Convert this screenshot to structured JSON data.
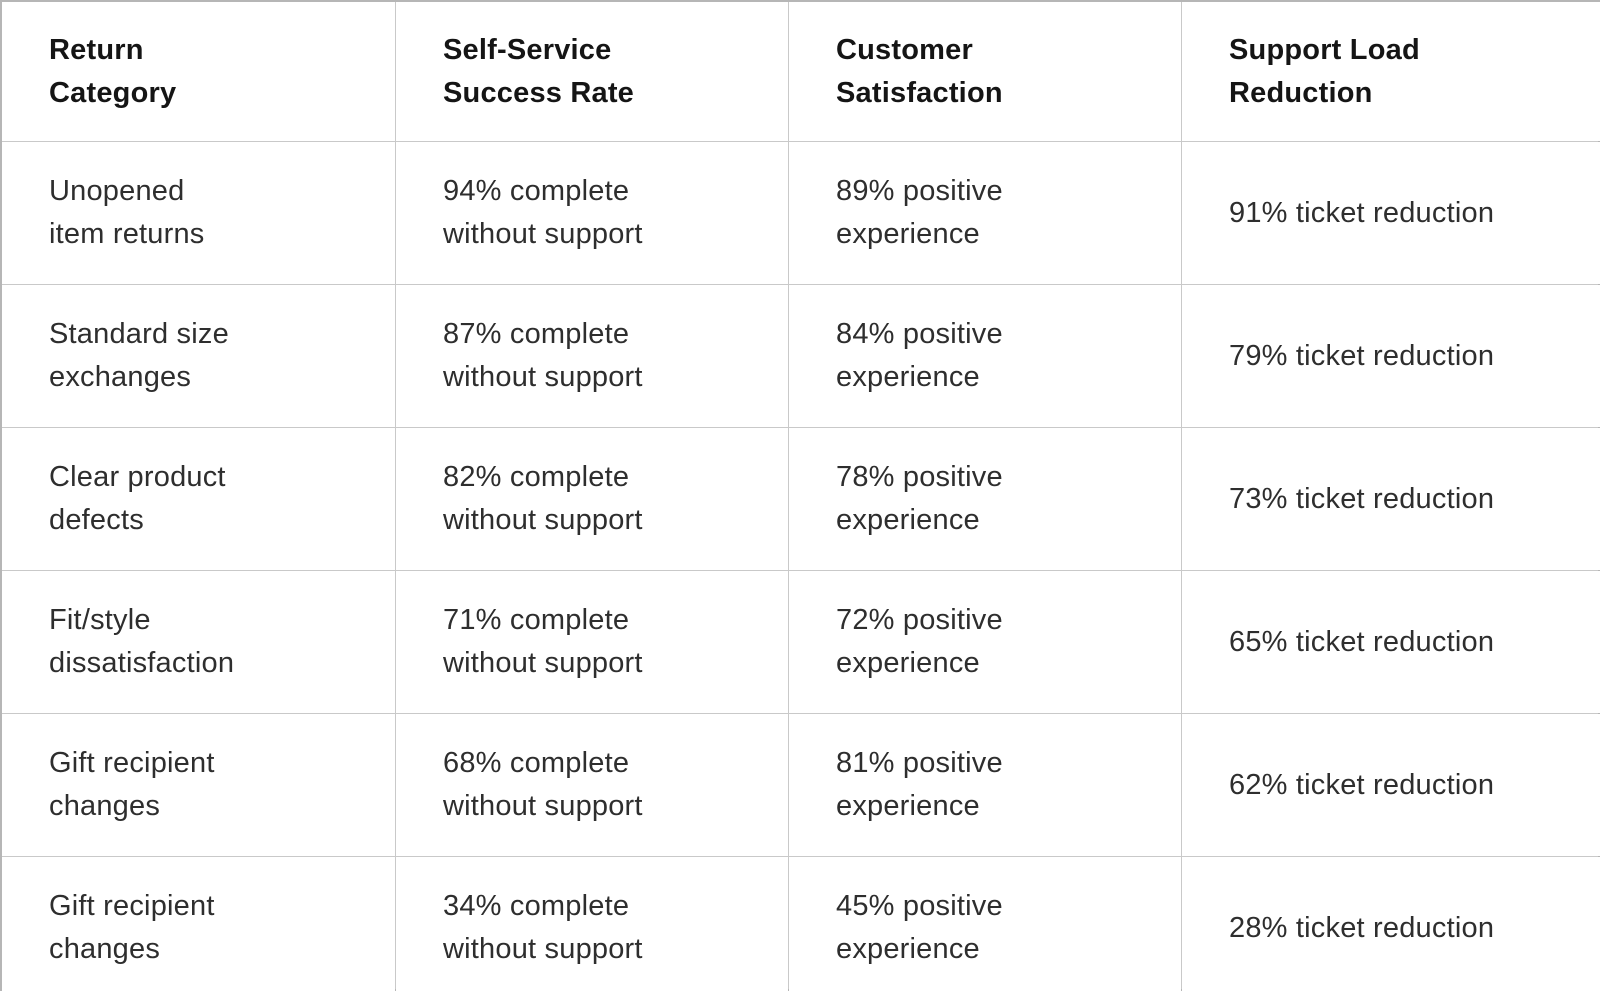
{
  "colors": {
    "background": "#ffffff",
    "grid_line": "#c9c9c9",
    "outer_border": "#b6b6b6",
    "header_text": "#151515",
    "cell_text": "#2e2e2e"
  },
  "table": {
    "headers": [
      "Return\nCategory",
      "Self-Service\nSuccess Rate",
      "Customer\nSatisfaction",
      "Support Load\nReduction"
    ],
    "rows": [
      {
        "category": "Unopened\nitem returns",
        "self_service": "94% complete\nwithout support",
        "satisfaction": "89% positive\nexperience",
        "support_load": "91% ticket reduction"
      },
      {
        "category": "Standard size\nexchanges",
        "self_service": "87% complete\nwithout support",
        "satisfaction": "84% positive\nexperience",
        "support_load": "79% ticket reduction"
      },
      {
        "category": "Clear product\ndefects",
        "self_service": "82% complete\nwithout support",
        "satisfaction": "78% positive\nexperience",
        "support_load": "73% ticket reduction"
      },
      {
        "category": "Fit/style\ndissatisfaction",
        "self_service": "71% complete\nwithout support",
        "satisfaction": "72% positive\nexperience",
        "support_load": "65% ticket reduction"
      },
      {
        "category": "Gift recipient\nchanges",
        "self_service": "68% complete\nwithout support",
        "satisfaction": "81% positive\nexperience",
        "support_load": "62% ticket reduction"
      },
      {
        "category": "Gift recipient\nchanges",
        "self_service": "34% complete\nwithout support",
        "satisfaction": "45% positive\nexperience",
        "support_load": "28% ticket reduction"
      }
    ]
  },
  "chart_data": {
    "type": "table",
    "columns": [
      "Return Category",
      "Self-Service Success Rate",
      "Customer Satisfaction",
      "Support Load Reduction"
    ],
    "rows": [
      [
        "Unopened item returns",
        "94% complete without support",
        "89% positive experience",
        "91% ticket reduction"
      ],
      [
        "Standard size exchanges",
        "87% complete without support",
        "84% positive experience",
        "79% ticket reduction"
      ],
      [
        "Clear product defects",
        "82% complete without support",
        "78% positive experience",
        "73% ticket reduction"
      ],
      [
        "Fit/style dissatisfaction",
        "71% complete without support",
        "72% positive experience",
        "65% ticket reduction"
      ],
      [
        "Gift recipient changes",
        "68% complete without support",
        "81% positive experience",
        "62% ticket reduction"
      ],
      [
        "Gift recipient changes",
        "34% complete without support",
        "45% positive experience",
        "28% ticket reduction"
      ]
    ],
    "numeric": {
      "categories": [
        "Unopened item returns",
        "Standard size exchanges",
        "Clear product defects",
        "Fit/style dissatisfaction",
        "Gift recipient changes",
        "Gift recipient changes"
      ],
      "series": [
        {
          "name": "Self-Service Success Rate (%)",
          "values": [
            94,
            87,
            82,
            71,
            68,
            34
          ]
        },
        {
          "name": "Customer Satisfaction (%)",
          "values": [
            89,
            84,
            78,
            72,
            81,
            45
          ]
        },
        {
          "name": "Support Load Reduction (%)",
          "values": [
            91,
            79,
            73,
            65,
            62,
            28
          ]
        }
      ]
    }
  }
}
